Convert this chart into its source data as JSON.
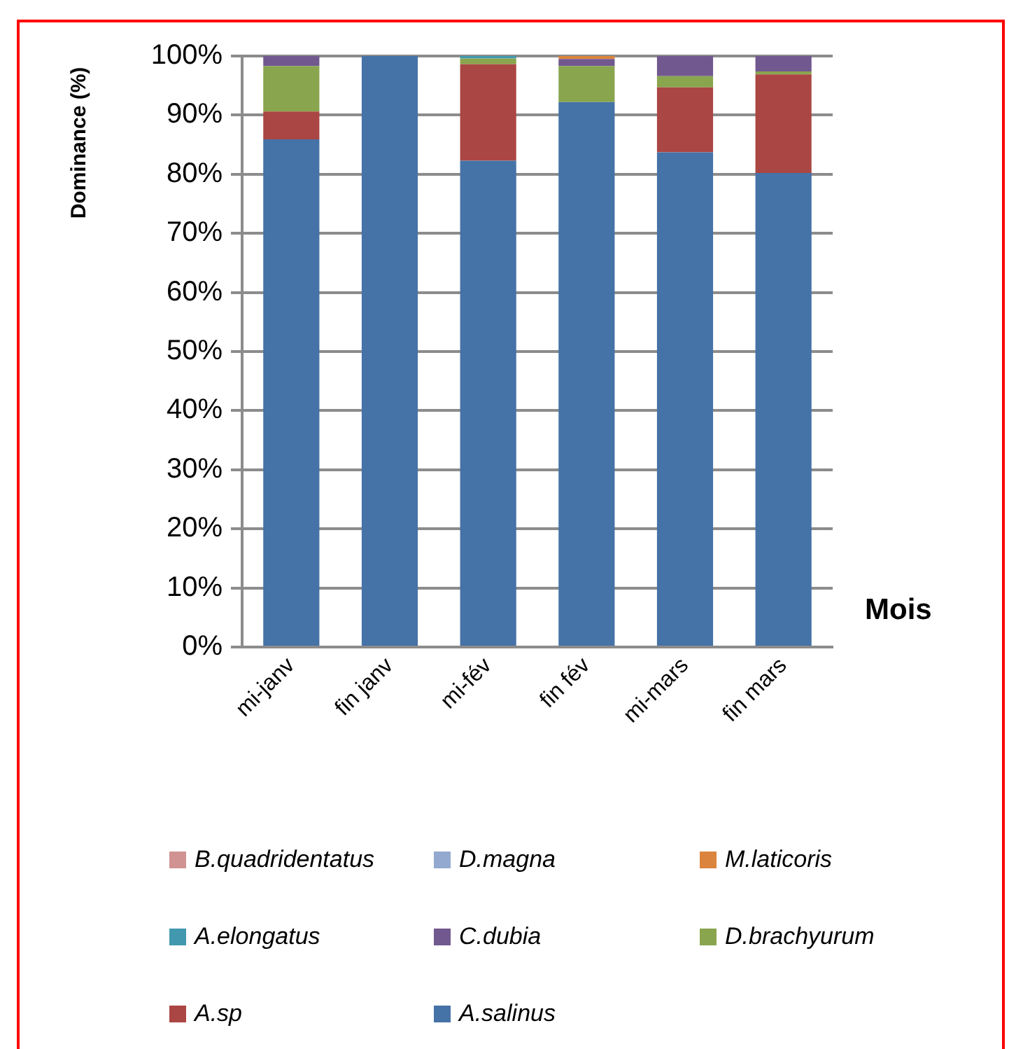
{
  "chart_data": {
    "type": "bar",
    "stacked": true,
    "ylabel": "Dominance (%)",
    "xlabel": "Mois",
    "categories": [
      "mi-janv",
      "fin janv",
      "mi-fév",
      "fin fév",
      "mi-mars",
      "fin mars"
    ],
    "series": [
      {
        "name": "A.salinus",
        "color": "#4572a7",
        "values": [
          85.9,
          100,
          82.3,
          92.2,
          83.7,
          80.2
        ]
      },
      {
        "name": "A.sp",
        "color": "#aa4643",
        "values": [
          4.7,
          0,
          16.3,
          0,
          11.0,
          16.7
        ]
      },
      {
        "name": "D.brachyurum",
        "color": "#89a54e",
        "values": [
          7.7,
          0,
          1.0,
          6.1,
          1.9,
          0.5
        ]
      },
      {
        "name": "C.dubia",
        "color": "#71588f",
        "values": [
          1.7,
          0,
          0,
          1.2,
          3.4,
          2.6
        ]
      },
      {
        "name": "A.elongatus",
        "color": "#4198af",
        "values": [
          0,
          0,
          0.4,
          0,
          0,
          0
        ]
      },
      {
        "name": "M.laticoris",
        "color": "#db843d",
        "values": [
          0,
          0,
          0,
          0.5,
          0,
          0
        ]
      },
      {
        "name": "D.magna",
        "color": "#93a9cf",
        "values": [
          0,
          0,
          0,
          0,
          0,
          0
        ]
      },
      {
        "name": "B.quadridentatus",
        "color": "#d19392",
        "values": [
          0,
          0,
          0,
          0,
          0,
          0
        ]
      }
    ],
    "ylim": [
      0,
      100
    ],
    "yticks": [
      {
        "value": 0,
        "label": "0%"
      },
      {
        "value": 10,
        "label": "10%"
      },
      {
        "value": 20,
        "label": "20%"
      },
      {
        "value": 30,
        "label": "30%"
      },
      {
        "value": 40,
        "label": "40%"
      },
      {
        "value": 50,
        "label": "50%"
      },
      {
        "value": 60,
        "label": "60%"
      },
      {
        "value": 70,
        "label": "70%"
      },
      {
        "value": 80,
        "label": "80%"
      },
      {
        "value": 90,
        "label": "90%"
      },
      {
        "value": 100,
        "label": "100%"
      }
    ],
    "grid": "y",
    "legend": "bottom"
  }
}
